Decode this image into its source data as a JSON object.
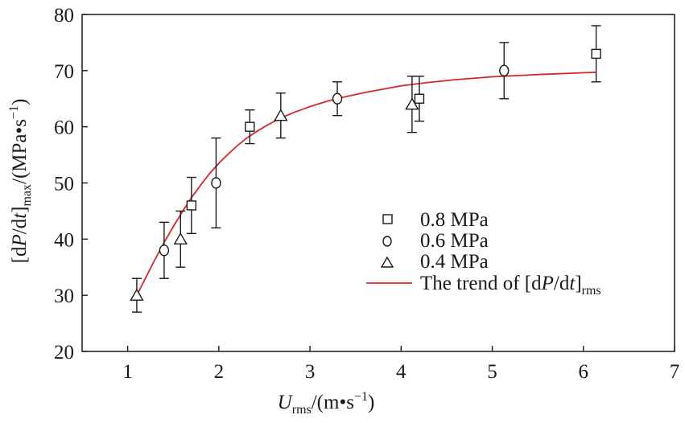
{
  "chart_data": {
    "type": "scatter",
    "title": "",
    "xlabel": {
      "main": "U",
      "sub": "rms",
      "rest_before": "/(m",
      "dot": "•",
      "rest_mid": "s",
      "sup": "−1",
      "rest_after": ")"
    },
    "ylabel": {
      "open": "[d",
      "p": "P",
      "slash": "/d",
      "t": "t",
      "close": "]",
      "sub": "max",
      "rest_before": "/(MPa",
      "dot": "•",
      "rest_mid": "s",
      "sup": "−1",
      "rest_after": ")"
    },
    "xlim": [
      0.5,
      7
    ],
    "ylim": [
      20,
      80
    ],
    "xticks": [
      1,
      2,
      3,
      4,
      5,
      6,
      7
    ],
    "yticks": [
      20,
      30,
      40,
      50,
      60,
      70,
      80
    ],
    "grid": false,
    "legend_position": "lower-right",
    "series": [
      {
        "name": "0.8 MPa",
        "marker": "square",
        "points": [
          {
            "x": 1.7,
            "y": 46,
            "ylow": 41,
            "yhigh": 51
          },
          {
            "x": 2.34,
            "y": 60,
            "ylow": 57,
            "yhigh": 63
          },
          {
            "x": 4.2,
            "y": 65,
            "ylow": 61,
            "yhigh": 69
          },
          {
            "x": 6.14,
            "y": 73,
            "ylow": 68,
            "yhigh": 78
          }
        ]
      },
      {
        "name": "0.6 MPa",
        "marker": "circle",
        "points": [
          {
            "x": 1.4,
            "y": 38,
            "ylow": 33,
            "yhigh": 43
          },
          {
            "x": 1.97,
            "y": 50,
            "ylow": 42,
            "yhigh": 58
          },
          {
            "x": 3.3,
            "y": 65,
            "ylow": 62,
            "yhigh": 68
          },
          {
            "x": 5.13,
            "y": 70,
            "ylow": 65,
            "yhigh": 75
          }
        ]
      },
      {
        "name": "0.4 MPa",
        "marker": "triangle",
        "points": [
          {
            "x": 1.1,
            "y": 30,
            "ylow": 27,
            "yhigh": 33
          },
          {
            "x": 1.58,
            "y": 40,
            "ylow": 35,
            "yhigh": 45
          },
          {
            "x": 2.68,
            "y": 62,
            "ylow": 58,
            "yhigh": 66
          },
          {
            "x": 4.12,
            "y": 64,
            "ylow": 59,
            "yhigh": 69
          }
        ]
      }
    ],
    "trend": {
      "legend": {
        "prefix": "The trend of [d",
        "p": "P",
        "slash": "/d",
        "t": "t",
        "close": "]",
        "sub": "rms"
      },
      "color": "#d62728",
      "x": [
        1.1,
        1.2,
        1.3,
        1.4,
        1.5,
        1.6,
        1.7,
        1.8,
        1.9,
        2.0,
        2.1,
        2.2,
        2.3,
        2.4,
        2.5,
        2.6,
        2.7,
        2.8,
        2.9,
        3.0,
        3.2,
        3.4,
        3.6,
        3.8,
        4.0,
        4.3,
        4.6,
        5.0,
        5.5,
        6.14
      ],
      "y": [
        30.0,
        33.2,
        36.4,
        39.4,
        42.2,
        44.9,
        47.4,
        49.6,
        51.7,
        53.5,
        55.1,
        56.6,
        57.9,
        59.0,
        60.0,
        60.9,
        61.7,
        62.4,
        63.0,
        63.6,
        64.6,
        65.4,
        66.1,
        66.7,
        67.3,
        67.9,
        68.4,
        68.9,
        69.3,
        69.7
      ]
    }
  }
}
